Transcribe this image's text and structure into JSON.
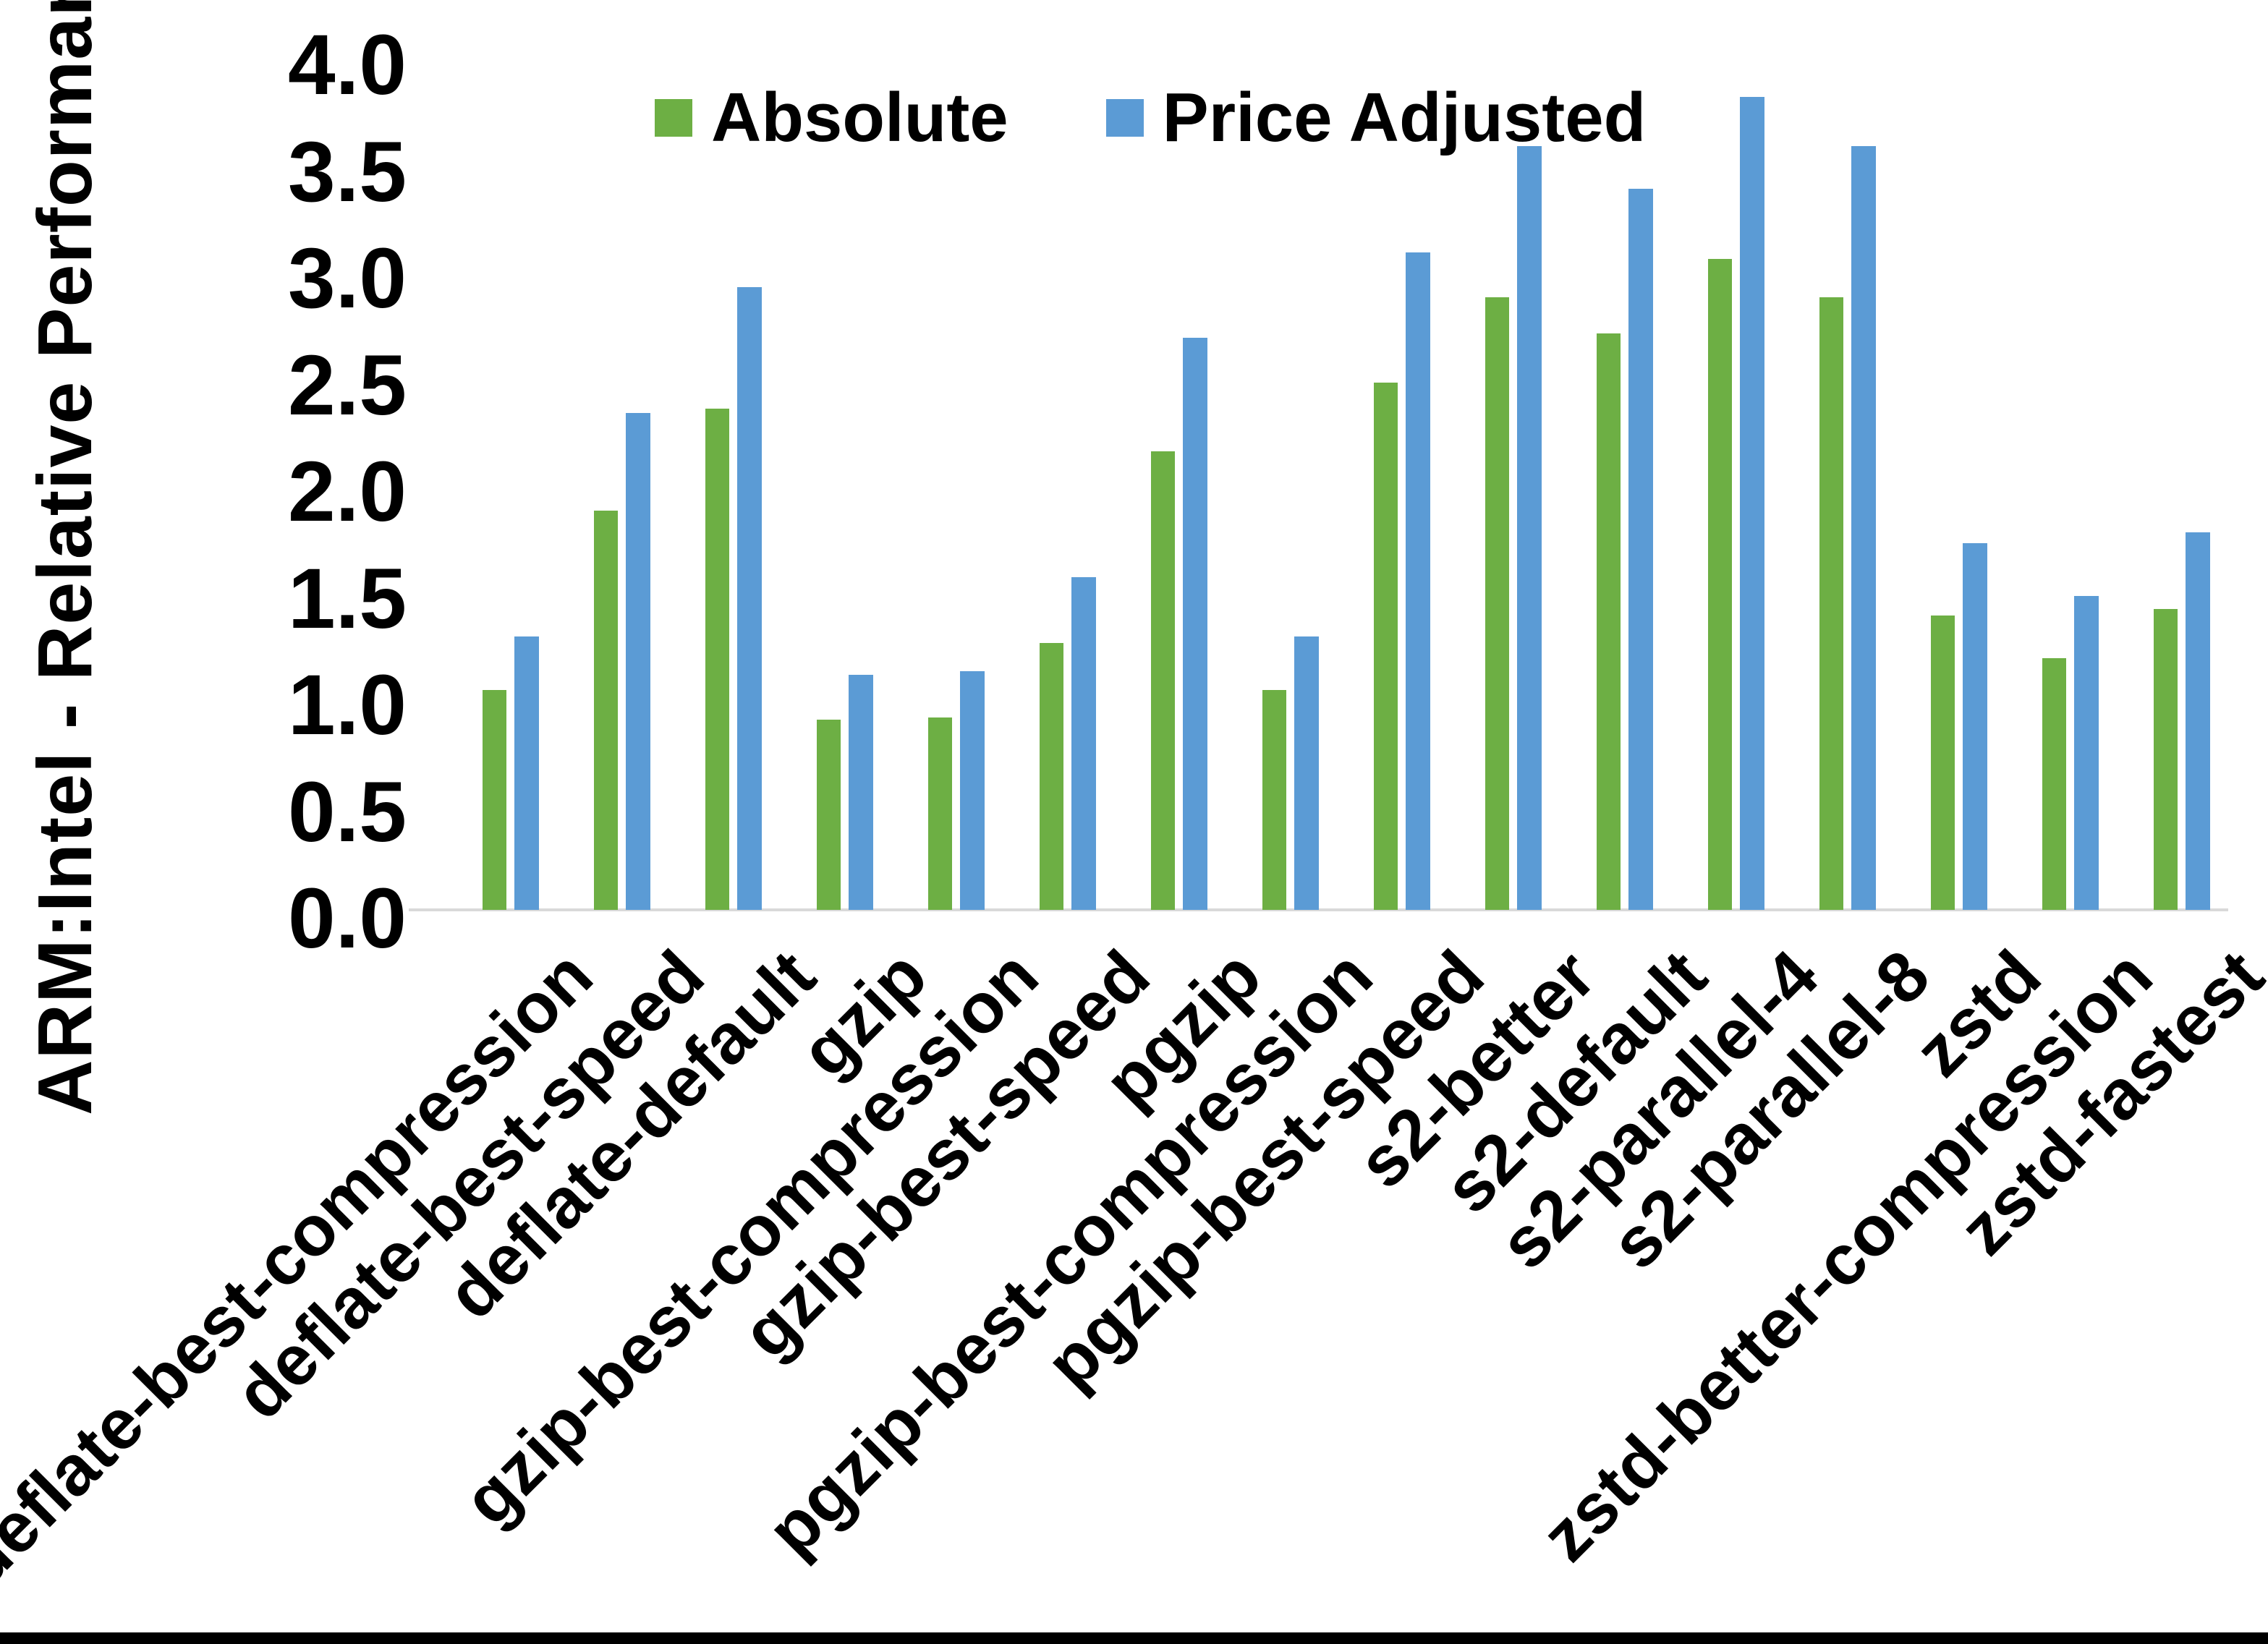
{
  "page": {
    "background": "#FFFFFF",
    "bottom_border_color": "#000000"
  },
  "colors": {
    "absolute_green": "#6DAF44",
    "price_adjusted_blue": "#5B9BD5",
    "axis_line_gray": "#D9D9D9",
    "text": "#000000"
  },
  "chart_data": {
    "type": "bar",
    "title": "",
    "xlabel": "",
    "ylabel": "ARM:Intel - Relative Performance",
    "ylim": [
      0,
      4.0
    ],
    "ytick_step": 0.5,
    "yticks": [
      "0.0",
      "0.5",
      "1.0",
      "1.5",
      "2.0",
      "2.5",
      "3.0",
      "3.5",
      "4.0"
    ],
    "grid": false,
    "legend_position": "top-center",
    "categories": [
      "deflate-best-compression",
      "deflate-best-speed",
      "deflate-default",
      "gzip",
      "gzip-best-compression",
      "gzip-best-speed",
      "pgzip",
      "pgzip-best-compression",
      "pgzip-best-speed",
      "s2-better",
      "s2-default",
      "s2-parallel-4",
      "s2-parallel-8",
      "zstd",
      "zstd-better-compression",
      "zstd-fastest"
    ],
    "series": [
      {
        "name": "Absolute",
        "color": "#6DAF44",
        "values": [
          1.03,
          1.87,
          2.35,
          0.89,
          0.9,
          1.25,
          2.15,
          1.03,
          2.47,
          2.87,
          2.7,
          3.05,
          2.87,
          1.38,
          1.18,
          1.41
        ]
      },
      {
        "name": "Price Adjusted",
        "color": "#5B9BD5",
        "values": [
          1.28,
          2.33,
          2.92,
          1.1,
          1.12,
          1.56,
          2.68,
          1.28,
          3.08,
          3.58,
          3.38,
          3.81,
          3.58,
          1.72,
          1.47,
          1.77
        ]
      }
    ]
  }
}
